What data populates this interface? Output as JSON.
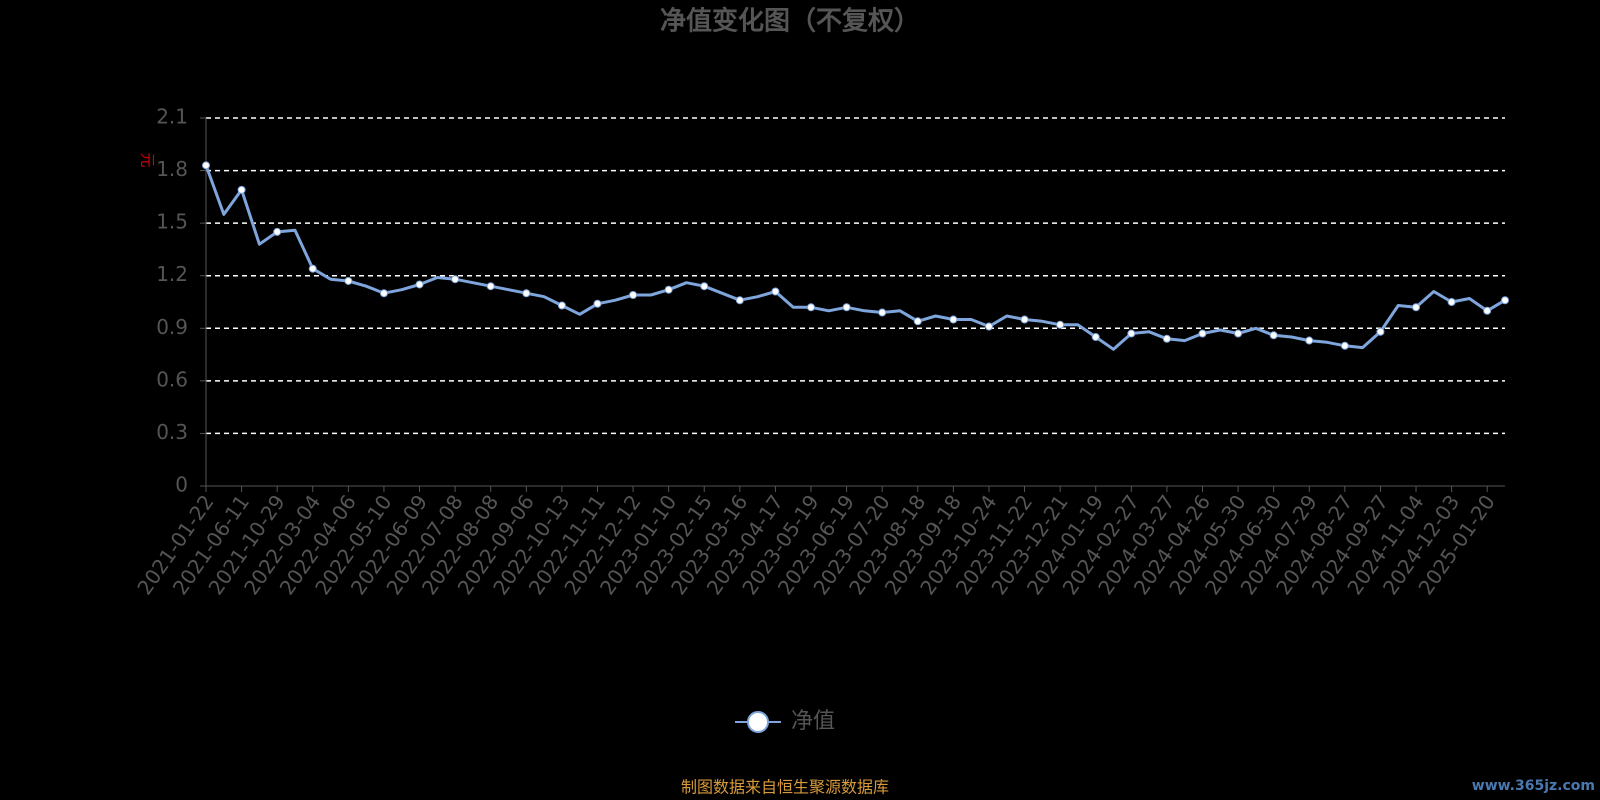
{
  "chart_data": {
    "type": "line",
    "title": "净值变化图（不复权）",
    "y_label": "元",
    "categories": [
      "2021-01-22",
      null,
      "2021-06-11",
      null,
      "2021-10-29",
      null,
      "2022-03-04",
      null,
      "2022-04-06",
      null,
      "2022-05-10",
      null,
      "2022-06-09",
      null,
      "2022-07-08",
      null,
      "2022-08-08",
      null,
      "2022-09-06",
      null,
      "2022-10-13",
      null,
      "2022-11-11",
      null,
      "2022-12-12",
      null,
      "2023-01-10",
      null,
      "2023-02-15",
      null,
      "2023-03-16",
      null,
      "2023-04-17",
      null,
      "2023-05-19",
      null,
      "2023-06-19",
      null,
      "2023-07-20",
      null,
      "2023-08-18",
      null,
      "2023-09-18",
      null,
      "2023-10-24",
      null,
      "2023-11-22",
      null,
      "2023-12-21",
      null,
      "2024-01-19",
      null,
      "2024-02-27",
      null,
      "2024-03-27",
      null,
      "2024-04-26",
      null,
      "2024-05-30",
      null,
      "2024-06-30",
      null,
      "2024-07-29",
      null,
      "2024-08-27",
      null,
      "2024-09-27",
      null,
      "2024-11-04",
      null,
      "2024-12-03",
      null,
      "2025-01-20",
      null
    ],
    "series": [
      {
        "name": "净值",
        "color": "#7fa6dc",
        "values": [
          1.83,
          1.55,
          1.69,
          1.38,
          1.45,
          1.46,
          1.24,
          1.18,
          1.17,
          1.14,
          1.1,
          1.12,
          1.15,
          1.19,
          1.18,
          1.16,
          1.14,
          1.12,
          1.1,
          1.08,
          1.03,
          0.98,
          1.04,
          1.06,
          1.09,
          1.09,
          1.12,
          1.16,
          1.14,
          1.1,
          1.06,
          1.08,
          1.11,
          1.02,
          1.02,
          1.0,
          1.02,
          1.0,
          0.99,
          1.0,
          0.94,
          0.97,
          0.95,
          0.95,
          0.91,
          0.97,
          0.95,
          0.94,
          0.92,
          0.92,
          0.85,
          0.78,
          0.87,
          0.88,
          0.84,
          0.83,
          0.87,
          0.89,
          0.87,
          0.9,
          0.86,
          0.85,
          0.83,
          0.82,
          0.8,
          0.79,
          0.88,
          1.03,
          1.02,
          1.11,
          1.05,
          1.07,
          1.0,
          1.06
        ]
      }
    ],
    "ylim": [
      0,
      2.1
    ],
    "yticks": [
      0,
      0.3,
      0.6,
      0.9,
      1.2,
      1.5,
      1.8,
      2.1
    ],
    "grid": true,
    "legend": "bottom",
    "source": "制图数据来自恒生聚源数据库",
    "watermark": "www.365jz.com"
  }
}
